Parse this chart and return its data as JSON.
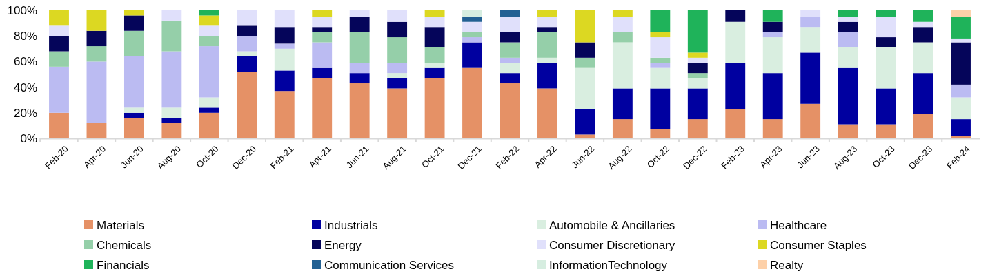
{
  "chart_data": {
    "type": "bar",
    "stacked": true,
    "legend": "bottom",
    "grid": false,
    "categories": [
      "Feb-20",
      "Apr-20",
      "Jun-20",
      "Aug-20",
      "Oct-20",
      "Dec-20",
      "Feb-21",
      "Apr-21",
      "Jun-21",
      "Aug-21",
      "Oct-21",
      "Dec-21",
      "Feb-22",
      "Apr-22",
      "Jun-22",
      "Aug-22",
      "Oct-22",
      "Dec-22",
      "Feb-23",
      "Apr-23",
      "Jun-23",
      "Aug-23",
      "Oct-23",
      "Dec-23",
      "Feb-24"
    ],
    "ylim": [
      0,
      100
    ],
    "yticks": [
      {
        "value": 0,
        "label": "0%"
      },
      {
        "value": 20,
        "label": "20%"
      },
      {
        "value": 40,
        "label": "40%"
      },
      {
        "value": 60,
        "label": "60%"
      },
      {
        "value": 80,
        "label": "80%"
      },
      {
        "value": 100,
        "label": "100%"
      }
    ],
    "series": [
      {
        "name": "Materials",
        "color": "#e59166",
        "values": [
          20,
          12,
          16,
          12,
          20,
          52,
          37,
          47,
          43,
          39,
          47,
          55,
          43,
          39,
          3,
          15,
          7,
          15,
          23,
          15,
          27,
          11,
          11,
          19,
          2
        ]
      },
      {
        "name": "Industrials",
        "color": "#0000a0",
        "values": [
          null,
          null,
          4,
          4,
          4,
          12,
          16,
          8,
          8,
          8,
          8,
          20,
          8,
          20,
          20,
          24,
          32,
          24,
          36,
          36,
          40,
          44,
          28,
          32,
          13
        ]
      },
      {
        "name": "Automobile & Ancillaries",
        "color": "#d9eee0",
        "values": [
          null,
          null,
          4,
          8,
          8,
          4,
          17,
          null,
          null,
          4,
          4,
          null,
          8,
          4,
          32,
          36,
          16,
          8,
          32,
          28,
          20,
          16,
          32,
          24,
          17
        ]
      },
      {
        "name": "Healthcare",
        "color": "#bbbbf2",
        "values": [
          36,
          48,
          40,
          44,
          40,
          12,
          4,
          20,
          8,
          8,
          null,
          4,
          4,
          null,
          null,
          null,
          4,
          null,
          null,
          4,
          8,
          12,
          null,
          null,
          10
        ]
      },
      {
        "name": "Chemicals",
        "color": "#95cfa9",
        "values": [
          12,
          12,
          20,
          24,
          8,
          null,
          null,
          8,
          24,
          20,
          12,
          4,
          12,
          20,
          8,
          8,
          4,
          4,
          null,
          null,
          null,
          null,
          null,
          null,
          null
        ]
      },
      {
        "name": "Energy",
        "color": "#05055a",
        "values": [
          12,
          12,
          12,
          null,
          null,
          8,
          13,
          4,
          12,
          12,
          16,
          null,
          8,
          4,
          12,
          null,
          null,
          8,
          9,
          8,
          null,
          8,
          8,
          12,
          33
        ]
      },
      {
        "name": "Consumer Discretionary",
        "color": "#e0e0fb",
        "values": [
          8,
          null,
          null,
          8,
          8,
          12,
          13,
          8,
          5,
          9,
          8,
          8,
          12,
          8,
          null,
          12,
          16,
          4,
          null,
          null,
          5,
          4,
          16,
          4,
          3
        ]
      },
      {
        "name": "Consumer Staples",
        "color": "#dcd822",
        "values": [
          12,
          16,
          4,
          null,
          8,
          null,
          null,
          5,
          null,
          null,
          5,
          null,
          null,
          5,
          25,
          5,
          4,
          4,
          null,
          null,
          null,
          null,
          null,
          null,
          null
        ]
      },
      {
        "name": "Financials",
        "color": "#1fb35a",
        "values": [
          null,
          null,
          null,
          null,
          4,
          null,
          null,
          null,
          null,
          null,
          null,
          null,
          null,
          null,
          null,
          null,
          17,
          33,
          null,
          9,
          null,
          5,
          5,
          9,
          17
        ]
      },
      {
        "name": "Communication Services",
        "color": "#236193",
        "values": [
          null,
          null,
          null,
          null,
          null,
          null,
          null,
          null,
          null,
          null,
          null,
          4,
          5,
          null,
          null,
          null,
          null,
          null,
          null,
          null,
          null,
          null,
          null,
          null,
          null
        ]
      },
      {
        "name": "InformationTechnology",
        "color": "#d6ede0",
        "values": [
          null,
          null,
          null,
          null,
          null,
          null,
          null,
          null,
          null,
          null,
          null,
          5,
          null,
          null,
          null,
          null,
          null,
          null,
          null,
          null,
          null,
          null,
          null,
          null,
          null
        ]
      },
      {
        "name": "Realty",
        "color": "#fdd0a8",
        "values": [
          null,
          null,
          null,
          null,
          null,
          null,
          null,
          null,
          null,
          null,
          null,
          null,
          null,
          null,
          null,
          null,
          null,
          null,
          null,
          null,
          null,
          null,
          null,
          null,
          5
        ]
      }
    ]
  }
}
